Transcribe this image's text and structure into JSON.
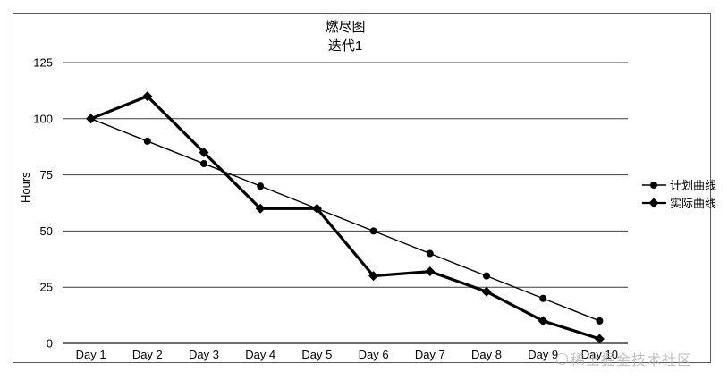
{
  "title": "燃尽图",
  "subtitle": "迭代1",
  "y_axis_title": "Hours",
  "watermark": {
    "text": "稀土掘金技术社区"
  },
  "colors": {
    "series": "#000000",
    "grid": "#3d3d3d",
    "axis": "#3d3d3d",
    "border": "#595959",
    "watermark": "#b3b3b3",
    "background": "#ffffff",
    "text": "#000000"
  },
  "chart_data": {
    "type": "line",
    "title": "燃尽图",
    "subtitle": "迭代1",
    "categories": [
      "Day 1",
      "Day 2",
      "Day 3",
      "Day 4",
      "Day 5",
      "Day 6",
      "Day 7",
      "Day 8",
      "Day 9",
      "Day 10"
    ],
    "series": [
      {
        "name": "计划曲线",
        "marker": "circle",
        "values": [
          100,
          90,
          80,
          70,
          60,
          50,
          40,
          30,
          20,
          10
        ]
      },
      {
        "name": "实际曲线",
        "marker": "diamond",
        "values": [
          100,
          110,
          85,
          60,
          60,
          30,
          32,
          23,
          10,
          2
        ]
      }
    ],
    "xlabel": "",
    "ylabel": "Hours",
    "ylim": [
      0,
      125
    ],
    "yticks": [
      0,
      25,
      50,
      75,
      100,
      125
    ],
    "grid": true,
    "legend_position": "right"
  }
}
